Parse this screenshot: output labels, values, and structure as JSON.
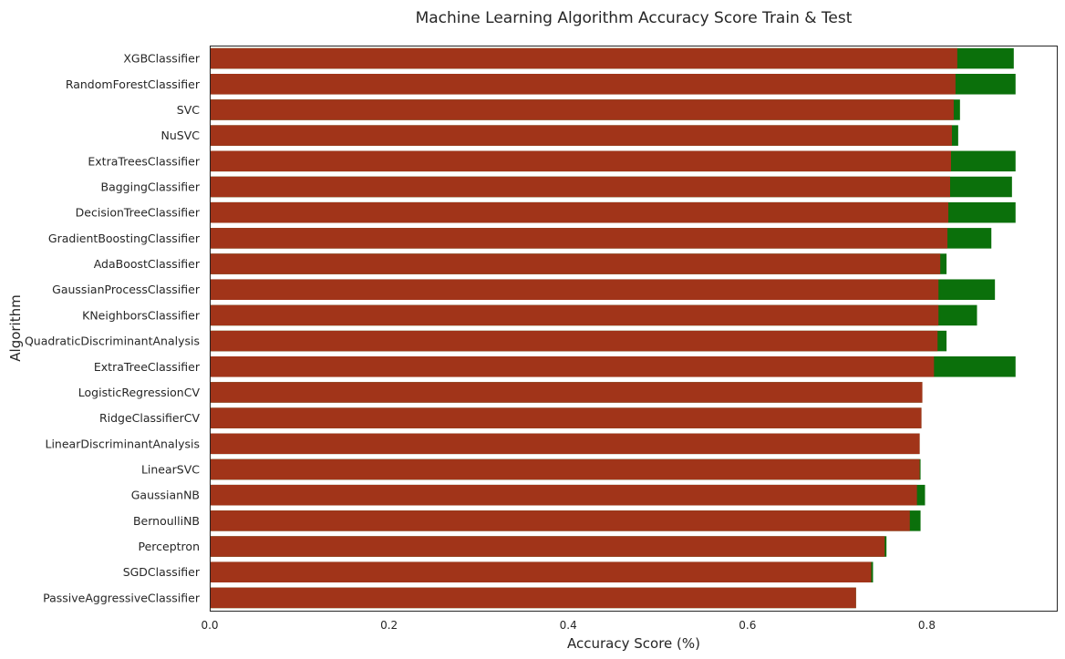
{
  "chart_data": {
    "type": "bar",
    "orientation": "horizontal",
    "title": "Machine Learning Algorithm Accuracy Score Train & Test",
    "xlabel": "Accuracy Score (%)",
    "ylabel": "Algorithm",
    "xlim": [
      0,
      0.945
    ],
    "xticks": [
      "0.0",
      "0.2",
      "0.4",
      "0.6",
      "0.8"
    ],
    "grid": false,
    "categories": [
      "XGBClassifier",
      "RandomForestClassifier",
      "SVC",
      "NuSVC",
      "ExtraTreesClassifier",
      "BaggingClassifier",
      "DecisionTreeClassifier",
      "GradientBoostingClassifier",
      "AdaBoostClassifier",
      "GaussianProcessClassifier",
      "KNeighborsClassifier",
      "QuadraticDiscriminantAnalysis",
      "ExtraTreeClassifier",
      "LogisticRegressionCV",
      "RidgeClassifierCV",
      "LinearDiscriminantAnalysis",
      "LinearSVC",
      "GaussianNB",
      "BernoulliNB",
      "Perceptron",
      "SGDClassifier",
      "PassiveAggressiveClassifier"
    ],
    "series": [
      {
        "color": "#0b700b",
        "values": [
          0.897,
          0.899,
          0.837,
          0.835,
          0.899,
          0.895,
          0.899,
          0.872,
          0.822,
          0.876,
          0.856,
          0.822,
          0.899,
          0.795,
          0.794,
          0.792,
          0.793,
          0.798,
          0.793,
          0.755,
          0.74,
          0.721
        ]
      },
      {
        "color": "#a13419",
        "values": [
          0.834,
          0.832,
          0.83,
          0.828,
          0.827,
          0.826,
          0.824,
          0.823,
          0.815,
          0.813,
          0.813,
          0.812,
          0.808,
          0.795,
          0.794,
          0.792,
          0.792,
          0.789,
          0.781,
          0.753,
          0.738,
          0.721
        ]
      }
    ]
  }
}
